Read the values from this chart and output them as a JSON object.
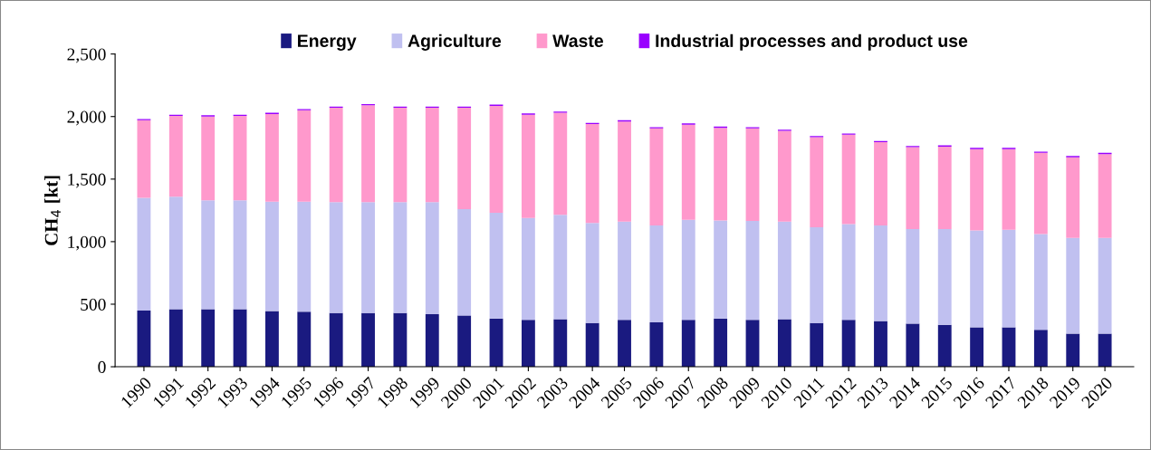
{
  "chart_data": {
    "type": "bar",
    "stacked": true,
    "ylabel": "CH$_{4}$ [kt]",
    "categories": [
      "1990",
      "1991",
      "1992",
      "1993",
      "1994",
      "1995",
      "1996",
      "1997",
      "1998",
      "1999",
      "2000",
      "2001",
      "2002",
      "2003",
      "2004",
      "2005",
      "2006",
      "2007",
      "2008",
      "2009",
      "2010",
      "2011",
      "2012",
      "2013",
      "2014",
      "2015",
      "2016",
      "2017",
      "2018",
      "2019",
      "2020"
    ],
    "series": [
      {
        "name": "Energy",
        "color": "#1a1a80",
        "values": [
          450,
          460,
          460,
          460,
          445,
          440,
          430,
          430,
          430,
          420,
          410,
          385,
          375,
          380,
          350,
          375,
          355,
          375,
          385,
          375,
          380,
          350,
          375,
          365,
          345,
          335,
          315,
          315,
          295,
          265,
          265
        ]
      },
      {
        "name": "Agriculture",
        "color": "#c0c0f0",
        "values": [
          900,
          900,
          870,
          870,
          875,
          880,
          885,
          885,
          885,
          895,
          850,
          845,
          815,
          835,
          800,
          785,
          775,
          800,
          785,
          790,
          780,
          765,
          765,
          765,
          755,
          765,
          775,
          780,
          765,
          765,
          765
        ]
      },
      {
        "name": "Waste",
        "color": "#ff99cc",
        "values": [
          620,
          645,
          670,
          675,
          700,
          730,
          755,
          775,
          755,
          755,
          810,
          855,
          825,
          815,
          790,
          800,
          775,
          760,
          740,
          740,
          725,
          720,
          715,
          665,
          655,
          660,
          650,
          645,
          650,
          645,
          670
        ]
      },
      {
        "name": "Industrial processes and product use",
        "color": "#9900ff",
        "values": [
          10,
          10,
          10,
          10,
          10,
          10,
          10,
          10,
          10,
          10,
          10,
          10,
          10,
          10,
          10,
          10,
          10,
          10,
          10,
          10,
          10,
          10,
          10,
          10,
          10,
          10,
          10,
          10,
          10,
          10,
          10
        ]
      }
    ],
    "ylim": [
      0,
      2500
    ],
    "yticks": [
      0,
      500,
      {
        "value": 1000,
        "label": "1,000"
      },
      {
        "value": 1500,
        "label": "1,500"
      },
      {
        "value": 2000,
        "label": "2,000"
      },
      {
        "value": 2500,
        "label": "2,500"
      }
    ],
    "grid": false,
    "legend": "top"
  }
}
